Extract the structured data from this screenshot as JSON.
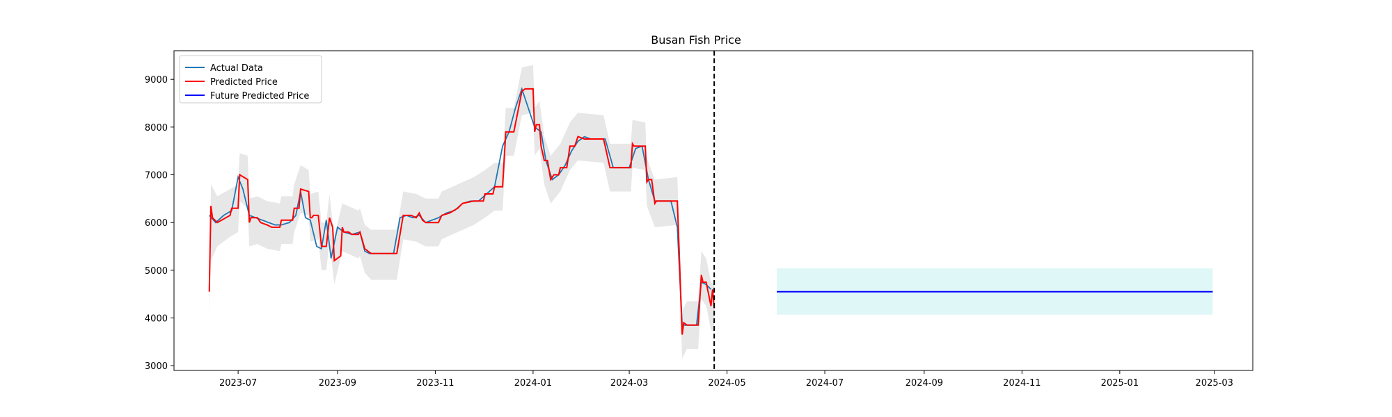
{
  "chart_data": {
    "type": "line",
    "title": "Busan Fish Price",
    "xlabel": "",
    "ylabel": "",
    "xlim": [
      "2023-05-22",
      "2025-03-25"
    ],
    "ylim": [
      2900,
      9600
    ],
    "x_ticks": [
      "2023-07",
      "2023-09",
      "2023-11",
      "2024-01",
      "2024-03",
      "2024-05",
      "2024-07",
      "2024-09",
      "2024-11",
      "2025-01",
      "2025-03"
    ],
    "y_ticks": [
      3000,
      4000,
      5000,
      6000,
      7000,
      8000,
      9000
    ],
    "grid": false,
    "legend_position": "upper-left",
    "legend": [
      "Actual Data",
      "Predicted Price",
      "Future Predicted Price"
    ],
    "colors": {
      "actual": "#1f77b4",
      "predicted": "#ff0000",
      "future": "#0000ff",
      "band": "#d3d3d3",
      "future_band": "#e0f7f7",
      "vline": "#000000"
    },
    "vline_date": "2024-04-23",
    "series": [
      {
        "name": "Actual Data",
        "points": [
          [
            "2023-06-13",
            6150
          ],
          [
            "2023-06-17",
            6000
          ],
          [
            "2023-06-22",
            6150
          ],
          [
            "2023-06-27",
            6250
          ],
          [
            "2023-07-01",
            6950
          ],
          [
            "2023-07-04",
            6700
          ],
          [
            "2023-07-08",
            6150
          ],
          [
            "2023-07-12",
            6100
          ],
          [
            "2023-07-16",
            6050
          ],
          [
            "2023-07-20",
            6000
          ],
          [
            "2023-07-24",
            5950
          ],
          [
            "2023-07-28",
            5950
          ],
          [
            "2023-08-02",
            6000
          ],
          [
            "2023-08-06",
            6150
          ],
          [
            "2023-08-09",
            6650
          ],
          [
            "2023-08-12",
            6100
          ],
          [
            "2023-08-15",
            6050
          ],
          [
            "2023-08-19",
            5500
          ],
          [
            "2023-08-22",
            5450
          ],
          [
            "2023-08-25",
            6050
          ],
          [
            "2023-08-28",
            5250
          ],
          [
            "2023-09-01",
            5900
          ],
          [
            "2023-09-05",
            5800
          ],
          [
            "2023-09-10",
            5750
          ],
          [
            "2023-09-15",
            5800
          ],
          [
            "2023-09-18",
            5400
          ],
          [
            "2023-09-21",
            5350
          ],
          [
            "2023-09-25",
            5350
          ],
          [
            "2023-10-01",
            5350
          ],
          [
            "2023-10-06",
            5350
          ],
          [
            "2023-10-10",
            6100
          ],
          [
            "2023-10-14",
            6150
          ],
          [
            "2023-10-18",
            6100
          ],
          [
            "2023-10-22",
            6150
          ],
          [
            "2023-10-26",
            6000
          ],
          [
            "2023-10-30",
            6050
          ],
          [
            "2023-11-03",
            6100
          ],
          [
            "2023-11-08",
            6200
          ],
          [
            "2023-11-13",
            6250
          ],
          [
            "2023-11-18",
            6400
          ],
          [
            "2023-11-23",
            6450
          ],
          [
            "2023-11-28",
            6450
          ],
          [
            "2023-12-03",
            6600
          ],
          [
            "2023-12-08",
            6750
          ],
          [
            "2023-12-13",
            7600
          ],
          [
            "2023-12-17",
            7900
          ],
          [
            "2023-12-21",
            8400
          ],
          [
            "2023-12-25",
            8800
          ],
          [
            "2023-12-29",
            8400
          ],
          [
            "2024-01-02",
            8000
          ],
          [
            "2024-01-06",
            7900
          ],
          [
            "2024-01-09",
            7300
          ],
          [
            "2024-01-13",
            6900
          ],
          [
            "2024-01-17",
            7000
          ],
          [
            "2024-01-21",
            7200
          ],
          [
            "2024-01-25",
            7500
          ],
          [
            "2024-01-29",
            7700
          ],
          [
            "2024-02-02",
            7800
          ],
          [
            "2024-02-06",
            7750
          ],
          [
            "2024-02-10",
            7750
          ],
          [
            "2024-02-15",
            7750
          ],
          [
            "2024-02-20",
            7150
          ],
          [
            "2024-02-25",
            7150
          ],
          [
            "2024-03-01",
            7150
          ],
          [
            "2024-03-05",
            7550
          ],
          [
            "2024-03-09",
            7600
          ],
          [
            "2024-03-13",
            6900
          ],
          [
            "2024-03-17",
            6450
          ],
          [
            "2024-03-22",
            6450
          ],
          [
            "2024-03-27",
            6450
          ],
          [
            "2024-03-31",
            5900
          ],
          [
            "2024-04-03",
            3850
          ],
          [
            "2024-04-08",
            3850
          ],
          [
            "2024-04-12",
            3850
          ],
          [
            "2024-04-15",
            4750
          ],
          [
            "2024-04-18",
            4700
          ],
          [
            "2024-04-21",
            4600
          ]
        ]
      },
      {
        "name": "Predicted Price",
        "points": [
          [
            "2023-06-13",
            4550
          ],
          [
            "2023-06-14",
            6350
          ],
          [
            "2023-06-15",
            6100
          ],
          [
            "2023-06-18",
            6000
          ],
          [
            "2023-06-26",
            6150
          ],
          [
            "2023-06-27",
            6300
          ],
          [
            "2023-07-01",
            6300
          ],
          [
            "2023-07-02",
            7000
          ],
          [
            "2023-07-07",
            6900
          ],
          [
            "2023-07-08",
            6000
          ],
          [
            "2023-07-09",
            6100
          ],
          [
            "2023-07-13",
            6100
          ],
          [
            "2023-07-15",
            6000
          ],
          [
            "2023-07-19",
            5950
          ],
          [
            "2023-07-22",
            5900
          ],
          [
            "2023-07-27",
            5900
          ],
          [
            "2023-07-28",
            6050
          ],
          [
            "2023-08-04",
            6050
          ],
          [
            "2023-08-05",
            6300
          ],
          [
            "2023-08-08",
            6300
          ],
          [
            "2023-08-09",
            6700
          ],
          [
            "2023-08-14",
            6650
          ],
          [
            "2023-08-15",
            6100
          ],
          [
            "2023-08-16",
            6100
          ],
          [
            "2023-08-17",
            6150
          ],
          [
            "2023-08-20",
            6150
          ],
          [
            "2023-08-22",
            5500
          ],
          [
            "2023-08-25",
            5500
          ],
          [
            "2023-08-27",
            6100
          ],
          [
            "2023-08-29",
            5900
          ],
          [
            "2023-08-30",
            5200
          ],
          [
            "2023-09-03",
            5300
          ],
          [
            "2023-09-04",
            5900
          ],
          [
            "2023-09-05",
            5800
          ],
          [
            "2023-09-08",
            5800
          ],
          [
            "2023-09-10",
            5750
          ],
          [
            "2023-09-14",
            5750
          ],
          [
            "2023-09-15",
            5800
          ],
          [
            "2023-09-18",
            5450
          ],
          [
            "2023-09-22",
            5350
          ],
          [
            "2023-10-08",
            5350
          ],
          [
            "2023-10-12",
            6150
          ],
          [
            "2023-10-17",
            6150
          ],
          [
            "2023-10-20",
            6100
          ],
          [
            "2023-10-22",
            6200
          ],
          [
            "2023-10-24",
            6050
          ],
          [
            "2023-10-26",
            6000
          ],
          [
            "2023-11-03",
            6000
          ],
          [
            "2023-11-05",
            6150
          ],
          [
            "2023-11-10",
            6200
          ],
          [
            "2023-11-15",
            6300
          ],
          [
            "2023-11-18",
            6400
          ],
          [
            "2023-11-25",
            6450
          ],
          [
            "2023-12-01",
            6450
          ],
          [
            "2023-12-02",
            6600
          ],
          [
            "2023-12-07",
            6600
          ],
          [
            "2023-12-08",
            6750
          ],
          [
            "2023-12-13",
            6750
          ],
          [
            "2023-12-15",
            7900
          ],
          [
            "2023-12-20",
            7900
          ],
          [
            "2023-12-25",
            8750
          ],
          [
            "2023-12-27",
            8800
          ],
          [
            "2024-01-01",
            8800
          ],
          [
            "2024-01-02",
            7900
          ],
          [
            "2024-01-03",
            8050
          ],
          [
            "2024-01-05",
            8050
          ],
          [
            "2024-01-06",
            7600
          ],
          [
            "2024-01-08",
            7300
          ],
          [
            "2024-01-10",
            7300
          ],
          [
            "2024-01-12",
            6900
          ],
          [
            "2024-01-14",
            7000
          ],
          [
            "2024-01-17",
            7000
          ],
          [
            "2024-01-18",
            7150
          ],
          [
            "2024-01-22",
            7150
          ],
          [
            "2024-01-24",
            7600
          ],
          [
            "2024-01-27",
            7600
          ],
          [
            "2024-01-29",
            7800
          ],
          [
            "2024-02-02",
            7750
          ],
          [
            "2024-02-14",
            7750
          ],
          [
            "2024-02-18",
            7150
          ],
          [
            "2024-03-02",
            7150
          ],
          [
            "2024-03-03",
            7650
          ],
          [
            "2024-03-04",
            7600
          ],
          [
            "2024-03-11",
            7600
          ],
          [
            "2024-03-12",
            6850
          ],
          [
            "2024-03-13",
            6900
          ],
          [
            "2024-03-15",
            6900
          ],
          [
            "2024-03-17",
            6400
          ],
          [
            "2024-03-18",
            6450
          ],
          [
            "2024-03-31",
            6450
          ],
          [
            "2024-04-03",
            3650
          ],
          [
            "2024-04-04",
            3900
          ],
          [
            "2024-04-06",
            3850
          ],
          [
            "2024-04-13",
            3850
          ],
          [
            "2024-04-15",
            4900
          ],
          [
            "2024-04-16",
            4750
          ],
          [
            "2024-04-18",
            4750
          ],
          [
            "2024-04-21",
            4250
          ],
          [
            "2024-04-22",
            4600
          ],
          [
            "2024-04-23",
            4200
          ]
        ],
        "band": [
          [
            "2023-06-13",
            4100,
            4100
          ],
          [
            "2023-06-14",
            5200,
            6800
          ],
          [
            "2023-06-18",
            5500,
            6550
          ],
          [
            "2023-06-26",
            5700,
            6700
          ],
          [
            "2023-07-01",
            5800,
            6800
          ],
          [
            "2023-07-02",
            6450,
            7450
          ],
          [
            "2023-07-07",
            6300,
            7400
          ],
          [
            "2023-07-08",
            5500,
            6500
          ],
          [
            "2023-07-13",
            5550,
            6550
          ],
          [
            "2023-07-19",
            5450,
            6450
          ],
          [
            "2023-07-27",
            5400,
            6400
          ],
          [
            "2023-07-28",
            5550,
            6550
          ],
          [
            "2023-08-04",
            5550,
            6550
          ],
          [
            "2023-08-05",
            5800,
            6800
          ],
          [
            "2023-08-09",
            6200,
            7200
          ],
          [
            "2023-08-14",
            6150,
            7100
          ],
          [
            "2023-08-15",
            5600,
            6600
          ],
          [
            "2023-08-20",
            5650,
            6650
          ],
          [
            "2023-08-22",
            5000,
            6000
          ],
          [
            "2023-08-25",
            5000,
            6000
          ],
          [
            "2023-08-27",
            5600,
            6600
          ],
          [
            "2023-08-30",
            4700,
            5700
          ],
          [
            "2023-09-04",
            5400,
            6400
          ],
          [
            "2023-09-14",
            5250,
            6250
          ],
          [
            "2023-09-15",
            5300,
            6300
          ],
          [
            "2023-09-18",
            4950,
            5950
          ],
          [
            "2023-09-22",
            4800,
            5850
          ],
          [
            "2023-10-08",
            4800,
            5850
          ],
          [
            "2023-10-12",
            5650,
            6650
          ],
          [
            "2023-10-20",
            5600,
            6600
          ],
          [
            "2023-10-26",
            5500,
            6500
          ],
          [
            "2023-11-03",
            5500,
            6500
          ],
          [
            "2023-11-05",
            5650,
            6650
          ],
          [
            "2023-11-15",
            5800,
            6800
          ],
          [
            "2023-11-25",
            5950,
            6950
          ],
          [
            "2023-12-02",
            6100,
            7100
          ],
          [
            "2023-12-08",
            6250,
            7250
          ],
          [
            "2023-12-13",
            6250,
            7250
          ],
          [
            "2023-12-15",
            7400,
            8400
          ],
          [
            "2023-12-20",
            7400,
            8400
          ],
          [
            "2023-12-25",
            8250,
            9250
          ],
          [
            "2024-01-01",
            8300,
            9300
          ],
          [
            "2024-01-02",
            7400,
            8400
          ],
          [
            "2024-01-05",
            7550,
            8550
          ],
          [
            "2024-01-08",
            6800,
            7800
          ],
          [
            "2024-01-12",
            6400,
            7400
          ],
          [
            "2024-01-18",
            6650,
            7650
          ],
          [
            "2024-01-24",
            7100,
            8100
          ],
          [
            "2024-01-29",
            7300,
            8300
          ],
          [
            "2024-02-14",
            7250,
            8250
          ],
          [
            "2024-02-18",
            6650,
            7650
          ],
          [
            "2024-03-02",
            6650,
            7650
          ],
          [
            "2024-03-03",
            7150,
            8150
          ],
          [
            "2024-03-11",
            7100,
            8100
          ],
          [
            "2024-03-12",
            6350,
            7350
          ],
          [
            "2024-03-17",
            5900,
            6900
          ],
          [
            "2024-03-31",
            5950,
            6950
          ],
          [
            "2024-04-03",
            3150,
            4150
          ],
          [
            "2024-04-06",
            3350,
            4350
          ],
          [
            "2024-04-13",
            3350,
            4350
          ],
          [
            "2024-04-15",
            4400,
            5400
          ],
          [
            "2024-04-18",
            4250,
            5250
          ],
          [
            "2024-04-21",
            3750,
            4750
          ],
          [
            "2024-04-23",
            3700,
            4700
          ]
        ]
      },
      {
        "name": "Future Predicted Price",
        "points": [
          [
            "2024-06-01",
            4550
          ],
          [
            "2025-02-28",
            4550
          ]
        ],
        "band": [
          [
            "2024-06-01",
            4070,
            5040
          ],
          [
            "2025-02-28",
            4070,
            5040
          ]
        ]
      }
    ]
  }
}
